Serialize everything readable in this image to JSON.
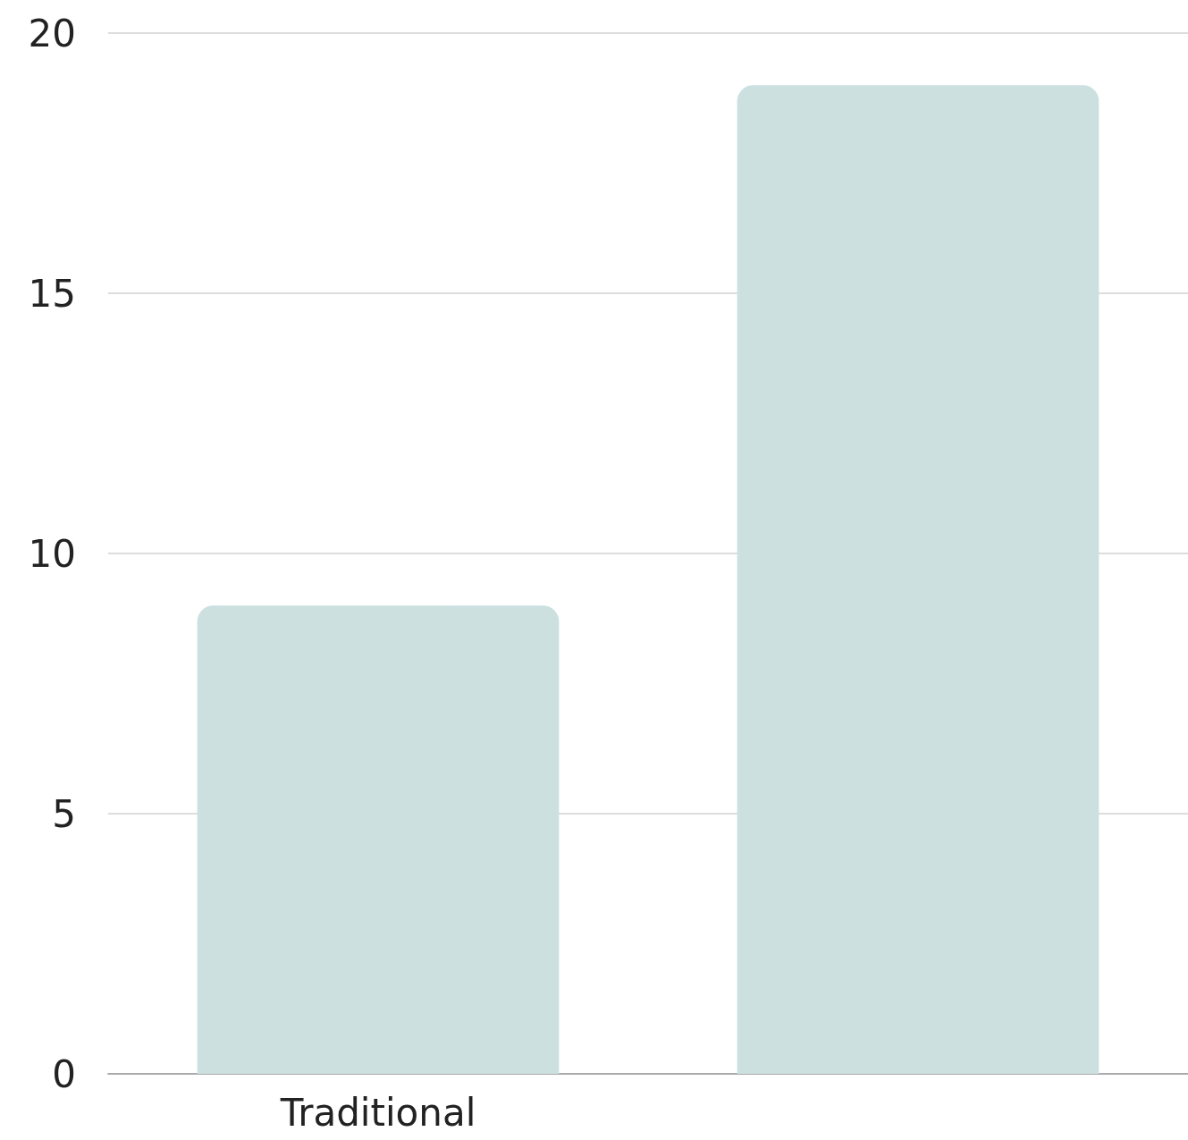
{
  "chart_data": {
    "type": "bar",
    "categories": [
      "Traditional",
      null
    ],
    "values": [
      9,
      19
    ],
    "color": "#cce0df",
    "ylim": [
      0,
      20
    ],
    "yticks": [
      0,
      5,
      10,
      15,
      20
    ],
    "grid": "y"
  }
}
